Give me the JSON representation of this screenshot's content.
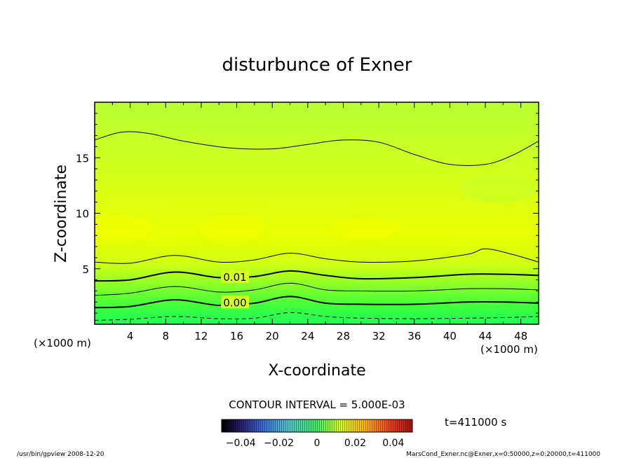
{
  "chart_data": {
    "type": "contour",
    "title": "disturbunce of Exner",
    "xlabel": "X-coordinate",
    "ylabel": "Z-coordinate",
    "x_unit_left": "(×1000 m)",
    "x_unit_right": "(×1000 m)",
    "xlim": [
      0,
      50
    ],
    "ylim": [
      0,
      20
    ],
    "x_ticks": [
      "4",
      "8",
      "12",
      "16",
      "20",
      "24",
      "28",
      "32",
      "36",
      "40",
      "44",
      "48"
    ],
    "y_ticks": [
      "5",
      "10",
      "15"
    ],
    "contour_interval_text": "CONTOUR INTERVAL = 5.000E-03",
    "contour_labels": [
      {
        "text": "0.01",
        "x": 15.8,
        "z": 4.3
      },
      {
        "text": "0.00",
        "x": 15.8,
        "z": 2.0
      }
    ],
    "contours": [
      {
        "level": -0.005,
        "style": "dashed",
        "x": [
          0,
          4,
          9,
          14,
          18,
          22,
          26,
          30,
          36,
          42,
          46,
          50
        ],
        "z": [
          0.35,
          0.45,
          0.7,
          0.5,
          0.55,
          1.05,
          0.7,
          0.55,
          0.5,
          0.55,
          0.6,
          0.7
        ]
      },
      {
        "level": 0.0,
        "style": "bold",
        "x": [
          0,
          4,
          9,
          14,
          18,
          22,
          26,
          30,
          36,
          42,
          46,
          50
        ],
        "z": [
          1.5,
          1.6,
          2.2,
          1.7,
          1.9,
          2.5,
          1.9,
          1.8,
          1.8,
          2.0,
          2.0,
          1.9
        ]
      },
      {
        "level": 0.005,
        "style": "thin",
        "x": [
          0,
          4,
          9,
          14,
          18,
          22,
          26,
          30,
          36,
          42,
          46,
          50
        ],
        "z": [
          2.6,
          2.8,
          3.4,
          2.9,
          3.1,
          3.7,
          3.1,
          3.0,
          3.0,
          3.2,
          3.2,
          3.1
        ]
      },
      {
        "level": 0.01,
        "style": "bold",
        "x": [
          0,
          4,
          9,
          14,
          18,
          22,
          26,
          30,
          36,
          42,
          46,
          50
        ],
        "z": [
          3.9,
          4.0,
          4.7,
          4.2,
          4.3,
          4.8,
          4.4,
          4.1,
          4.2,
          4.5,
          4.5,
          4.4
        ]
      },
      {
        "level": 0.015,
        "style": "thin",
        "x": [
          0,
          4,
          9,
          14,
          18,
          22,
          26,
          30,
          36,
          42,
          44,
          47,
          50
        ],
        "z": [
          5.6,
          5.5,
          6.2,
          5.6,
          5.8,
          6.4,
          5.9,
          5.6,
          5.7,
          6.3,
          6.8,
          6.3,
          5.6
        ]
      },
      {
        "level": 0.015,
        "style": "thin",
        "x": [
          0,
          3,
          6,
          10,
          15,
          20,
          24,
          28,
          32,
          36,
          40,
          44,
          47,
          50
        ],
        "z": [
          16.6,
          17.3,
          17.2,
          16.5,
          15.9,
          15.8,
          16.2,
          16.6,
          16.4,
          15.3,
          14.4,
          14.4,
          15.2,
          16.5
        ]
      }
    ],
    "colorbar": {
      "ticks": [
        "−0.04",
        "−0.02",
        "0",
        "0.02",
        "0.04"
      ],
      "range": [
        -0.05,
        0.05
      ]
    },
    "time_label": "t=411000 s"
  },
  "footer": {
    "left": "/usr/bin/gpview   2008-12-20",
    "right": "MarsCond_Exner.nc@Exner,x=0:50000,z=0:20000,t=411000"
  }
}
